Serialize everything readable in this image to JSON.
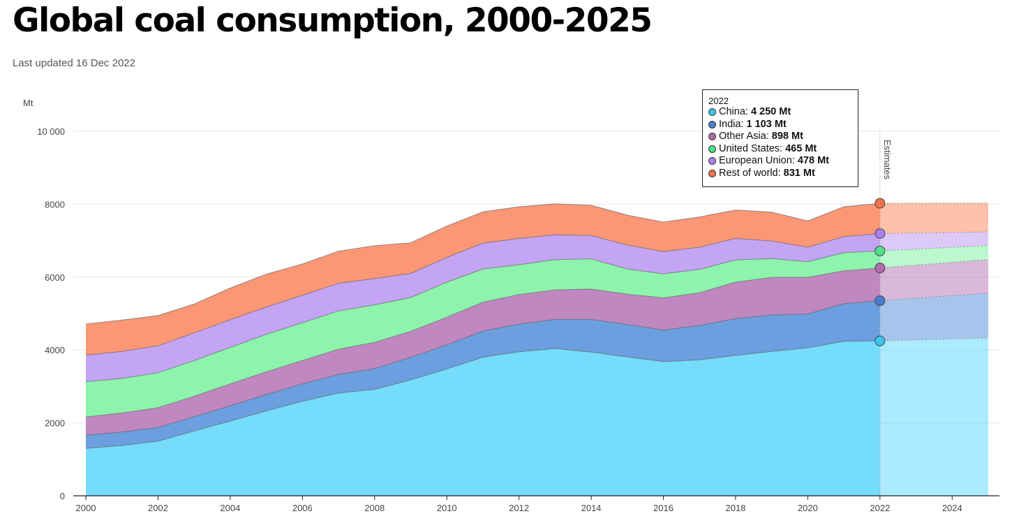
{
  "title": "Global coal consumption, 2000-2025",
  "subtitle": "Last updated 16 Dec 2022",
  "chart_data": {
    "type": "area",
    "stacked": true,
    "x": [
      2000,
      2001,
      2002,
      2003,
      2004,
      2005,
      2006,
      2007,
      2008,
      2009,
      2010,
      2011,
      2012,
      2013,
      2014,
      2015,
      2016,
      2017,
      2018,
      2019,
      2020,
      2021,
      2022,
      2025
    ],
    "estimates_from": 2022,
    "estimates_label": "Estimates",
    "y_unit": "Mt",
    "ylim": [
      0,
      10000
    ],
    "y_ticks": [
      0,
      2000,
      4000,
      6000,
      8000,
      10000
    ],
    "y_tick_labels": [
      "0",
      "2000",
      "4000",
      "6000",
      "8000",
      "10 000"
    ],
    "x_ticks": [
      2000,
      2002,
      2004,
      2006,
      2008,
      2010,
      2012,
      2014,
      2016,
      2018,
      2020,
      2022,
      2024
    ],
    "grid": "horizontal",
    "series": [
      {
        "name": "China",
        "color": "#75dcfb",
        "values": [
          1300,
          1380,
          1500,
          1780,
          2050,
          2330,
          2590,
          2820,
          2920,
          3180,
          3480,
          3800,
          3950,
          4040,
          3940,
          3810,
          3680,
          3730,
          3850,
          3960,
          4060,
          4240,
          4250,
          4330
        ]
      },
      {
        "name": "India",
        "color": "#6c9fdf",
        "values": [
          360,
          370,
          375,
          390,
          420,
          450,
          480,
          510,
          570,
          620,
          660,
          720,
          760,
          800,
          900,
          890,
          870,
          940,
          1010,
          1000,
          930,
          1030,
          1103,
          1230
        ]
      },
      {
        "name": "Other Asia",
        "color": "#c088c0",
        "values": [
          500,
          520,
          540,
          560,
          600,
          620,
          640,
          690,
          720,
          710,
          760,
          790,
          810,
          810,
          830,
          830,
          880,
          900,
          1000,
          1030,
          1000,
          900,
          898,
          920
        ]
      },
      {
        "name": "United States",
        "color": "#8ef3ac",
        "values": [
          970,
          950,
          960,
          980,
          1000,
          1030,
          1040,
          1050,
          1030,
          930,
          960,
          910,
          820,
          830,
          830,
          690,
          660,
          640,
          610,
          520,
          430,
          500,
          465,
          390
        ]
      },
      {
        "name": "European Union",
        "color": "#c4a5f4",
        "values": [
          730,
          740,
          740,
          760,
          760,
          750,
          750,
          760,
          720,
          660,
          680,
          710,
          720,
          680,
          640,
          660,
          610,
          610,
          590,
          480,
          400,
          440,
          478,
          370
        ]
      },
      {
        "name": "Rest of world",
        "color": "#fc9775",
        "values": [
          850,
          860,
          830,
          790,
          870,
          900,
          860,
          880,
          900,
          840,
          860,
          860,
          870,
          850,
          830,
          820,
          810,
          830,
          780,
          790,
          720,
          820,
          831,
          790
        ]
      }
    ],
    "tooltip": {
      "year": "2022",
      "rows": [
        {
          "label": "China: ",
          "value": "4 250 Mt",
          "color": "#3cc6f0"
        },
        {
          "label": "India: ",
          "value": "1 103 Mt",
          "color": "#4a7fcf"
        },
        {
          "label": "Other Asia: ",
          "value": "898 Mt",
          "color": "#b06cb0"
        },
        {
          "label": "United States: ",
          "value": "465 Mt",
          "color": "#4fe08a"
        },
        {
          "label": "European Union: ",
          "value": "478 Mt",
          "color": "#a97fee"
        },
        {
          "label": "Rest of world: ",
          "value": "831 Mt",
          "color": "#f0734a"
        }
      ]
    }
  }
}
